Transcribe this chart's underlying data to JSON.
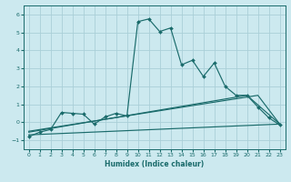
{
  "title": "",
  "xlabel": "Humidex (Indice chaleur)",
  "background_color": "#cce9ef",
  "grid_color": "#aacfd8",
  "line_color": "#1a6b6b",
  "xlim": [
    -0.5,
    23.5
  ],
  "ylim": [
    -1.5,
    6.5
  ],
  "xticks": [
    0,
    1,
    2,
    3,
    4,
    5,
    6,
    7,
    8,
    9,
    10,
    11,
    12,
    13,
    14,
    15,
    16,
    17,
    18,
    19,
    20,
    21,
    22,
    23
  ],
  "yticks": [
    -1,
    0,
    1,
    2,
    3,
    4,
    5,
    6
  ],
  "series1_x": [
    0,
    1,
    2,
    3,
    4,
    5,
    6,
    7,
    8,
    9,
    10,
    11,
    12,
    13,
    14,
    15,
    16,
    17,
    18,
    19,
    20,
    21,
    22,
    23
  ],
  "series1_y": [
    -0.8,
    -0.55,
    -0.4,
    0.55,
    0.5,
    0.45,
    -0.1,
    0.3,
    0.5,
    0.35,
    5.6,
    5.75,
    5.05,
    5.25,
    3.2,
    3.45,
    2.55,
    3.3,
    2.0,
    1.5,
    1.5,
    0.85,
    0.25,
    -0.15
  ],
  "series2_x": [
    0,
    23
  ],
  "series2_y": [
    -0.7,
    -0.1
  ],
  "series3_x": [
    0,
    21,
    23
  ],
  "series3_y": [
    -0.5,
    1.5,
    -0.1
  ],
  "series4_x": [
    0,
    20,
    23
  ],
  "series4_y": [
    -0.55,
    1.5,
    -0.1
  ]
}
